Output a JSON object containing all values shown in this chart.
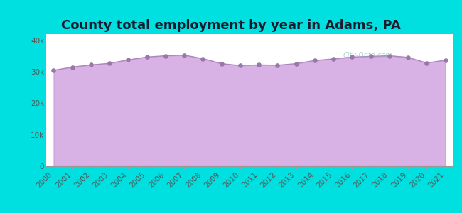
{
  "title": "County total employment by year in Adams, PA",
  "years": [
    2000,
    2001,
    2002,
    2003,
    2004,
    2005,
    2006,
    2007,
    2008,
    2009,
    2010,
    2011,
    2012,
    2013,
    2014,
    2015,
    2016,
    2017,
    2018,
    2019,
    2020,
    2021
  ],
  "values": [
    30500,
    31500,
    32200,
    32700,
    33800,
    34700,
    35100,
    35300,
    34200,
    32600,
    32000,
    32200,
    32100,
    32600,
    33600,
    34100,
    34700,
    34900,
    35100,
    34600,
    32800,
    33700
  ],
  "yticks": [
    0,
    10000,
    20000,
    30000,
    40000
  ],
  "ytick_labels": [
    "0",
    "10k",
    "20k",
    "30k",
    "40k"
  ],
  "ylim": [
    0,
    42000
  ],
  "background_outer": "#00e0e0",
  "background_inner": "#ffffff",
  "fill_color": "#cc99dd",
  "fill_alpha": 0.75,
  "line_color": "#aa88bb",
  "marker_color": "#9977aa",
  "marker_size": 14,
  "title_color": "#1a1a2e",
  "tick_color": "#555555",
  "title_fontsize": 13,
  "tick_fontsize": 7.5
}
